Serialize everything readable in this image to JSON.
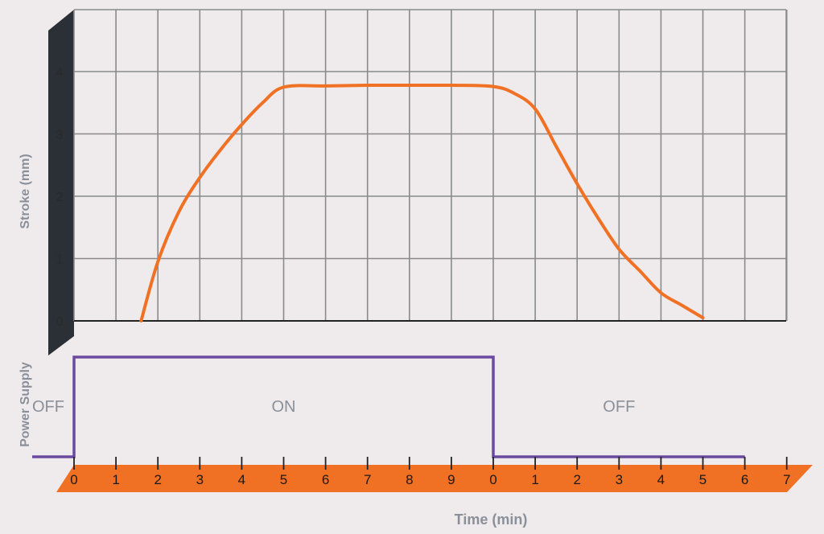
{
  "colors": {
    "background": "#efebec",
    "grid": "#8a8a8a",
    "stroke_line": "#f07124",
    "power_line": "#6a4aa0",
    "axis_band_dark": "#2b2f36",
    "axis_band_orange": "#f07124",
    "label_grey": "#8a9099"
  },
  "chart_data": {
    "type": "line",
    "ylabel": "Stroke (mm)",
    "ylim": [
      0,
      4
    ],
    "y_ticks": [
      "0",
      "1",
      "2",
      "3",
      "4"
    ],
    "x_ticks": [
      "0",
      "1",
      "2",
      "3",
      "4",
      "5",
      "6",
      "7",
      "8",
      "9",
      "0",
      "1",
      "2",
      "3",
      "4",
      "5",
      "6",
      "7"
    ],
    "xlabel": "Time (min)",
    "grid": true,
    "stroke_series": {
      "x": [
        1.6,
        2,
        2.5,
        3,
        3.5,
        4,
        4.5,
        5,
        6,
        7,
        8,
        9,
        10,
        10.5,
        11,
        11.5,
        12,
        12.5,
        13,
        13.5,
        14,
        14.5,
        15
      ],
      "y": [
        0,
        0.95,
        1.75,
        2.3,
        2.75,
        3.15,
        3.5,
        3.75,
        3.77,
        3.78,
        3.78,
        3.78,
        3.76,
        3.65,
        3.4,
        2.8,
        2.2,
        1.65,
        1.15,
        0.8,
        0.45,
        0.25,
        0.05
      ]
    },
    "power_supply": {
      "label": "Power Supply",
      "segments": [
        {
          "state": "OFF",
          "label": "OFF",
          "x_start": -1,
          "x_end": 0,
          "level": 0
        },
        {
          "state": "ON",
          "label": "ON",
          "x_start": 0,
          "x_end": 10,
          "level": 1
        },
        {
          "state": "OFF",
          "label": "OFF",
          "x_start": 10,
          "x_end": 16,
          "level": 0
        }
      ]
    }
  }
}
